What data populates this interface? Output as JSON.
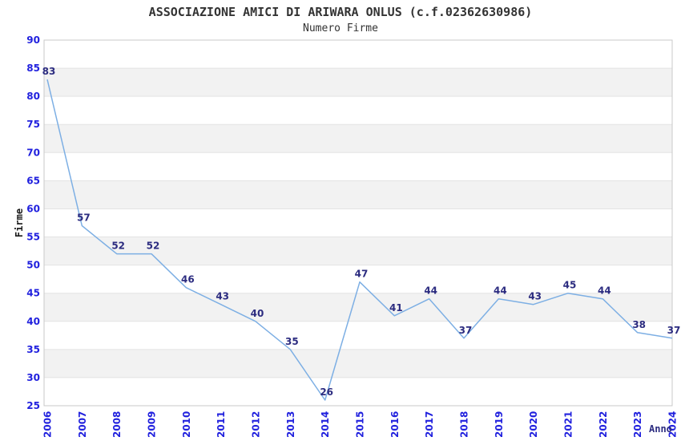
{
  "chart_data": {
    "type": "line",
    "title": "ASSOCIAZIONE AMICI DI ARIWARA ONLUS (c.f.02362630986)",
    "subtitle": "Numero Firme",
    "xlabel": "Anno",
    "ylabel": "Firme",
    "categories": [
      "2006",
      "2007",
      "2008",
      "2009",
      "2010",
      "2011",
      "2012",
      "2013",
      "2014",
      "2015",
      "2016",
      "2017",
      "2018",
      "2019",
      "2020",
      "2021",
      "2022",
      "2023",
      "2024"
    ],
    "values": [
      83,
      57,
      52,
      52,
      46,
      43,
      40,
      35,
      26,
      47,
      41,
      44,
      37,
      44,
      43,
      45,
      44,
      38,
      37
    ],
    "ylim": [
      25,
      90
    ],
    "ytick_step": 5,
    "grid": true,
    "legend_position": "none",
    "band_pattern": "alternating 5-unit horizontal bands, gray between 85-80, 75-70, 65-60, 55-50, 45-40, 35-30",
    "colors": {
      "line": "#7dafe4",
      "data_label": "#2c2c80",
      "axis_tick": "#2121de",
      "band": "#f2f2f2",
      "gridline": "#e3e3e3",
      "plot_border": "#c9c9c9",
      "title": "#333333",
      "x_axis_title": "#2c2c80",
      "y_axis_title": "#1a1a1a",
      "background": "#ffffff"
    }
  }
}
